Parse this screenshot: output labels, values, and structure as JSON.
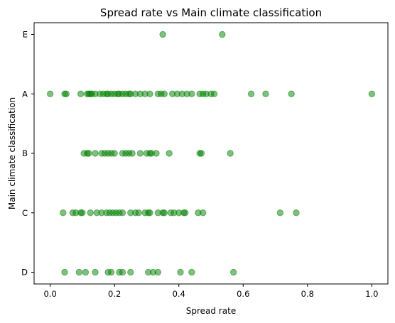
{
  "chart_data": {
    "type": "scatter",
    "title": "Spread rate vs Main climate classification",
    "xlabel": "Spread rate",
    "ylabel": "Main climate classification",
    "xlim": [
      -0.05,
      1.05
    ],
    "xticks": [
      0.0,
      0.2,
      0.4,
      0.6,
      0.8,
      1.0
    ],
    "xtick_labels": [
      "0.0",
      "0.2",
      "0.4",
      "0.6",
      "0.8",
      "1.0"
    ],
    "categories": [
      "D",
      "C",
      "B",
      "A",
      "E"
    ],
    "grid": false,
    "marker_color": "#008000",
    "marker_opacity": 0.5,
    "series": [
      {
        "points": [
          {
            "x": 0.35,
            "y": "E"
          },
          {
            "x": 0.535,
            "y": "E"
          },
          {
            "x": 0.0,
            "y": "A"
          },
          {
            "x": 0.045,
            "y": "A"
          },
          {
            "x": 0.05,
            "y": "A"
          },
          {
            "x": 0.095,
            "y": "A"
          },
          {
            "x": 0.115,
            "y": "A"
          },
          {
            "x": 0.12,
            "y": "A"
          },
          {
            "x": 0.125,
            "y": "A"
          },
          {
            "x": 0.13,
            "y": "A"
          },
          {
            "x": 0.14,
            "y": "A"
          },
          {
            "x": 0.155,
            "y": "A"
          },
          {
            "x": 0.165,
            "y": "A"
          },
          {
            "x": 0.175,
            "y": "A"
          },
          {
            "x": 0.18,
            "y": "A"
          },
          {
            "x": 0.19,
            "y": "A"
          },
          {
            "x": 0.2,
            "y": "A"
          },
          {
            "x": 0.21,
            "y": "A"
          },
          {
            "x": 0.215,
            "y": "A"
          },
          {
            "x": 0.225,
            "y": "A"
          },
          {
            "x": 0.235,
            "y": "A"
          },
          {
            "x": 0.245,
            "y": "A"
          },
          {
            "x": 0.25,
            "y": "A"
          },
          {
            "x": 0.265,
            "y": "A"
          },
          {
            "x": 0.28,
            "y": "A"
          },
          {
            "x": 0.295,
            "y": "A"
          },
          {
            "x": 0.31,
            "y": "A"
          },
          {
            "x": 0.335,
            "y": "A"
          },
          {
            "x": 0.345,
            "y": "A"
          },
          {
            "x": 0.355,
            "y": "A"
          },
          {
            "x": 0.38,
            "y": "A"
          },
          {
            "x": 0.395,
            "y": "A"
          },
          {
            "x": 0.41,
            "y": "A"
          },
          {
            "x": 0.425,
            "y": "A"
          },
          {
            "x": 0.44,
            "y": "A"
          },
          {
            "x": 0.465,
            "y": "A"
          },
          {
            "x": 0.475,
            "y": "A"
          },
          {
            "x": 0.485,
            "y": "A"
          },
          {
            "x": 0.5,
            "y": "A"
          },
          {
            "x": 0.51,
            "y": "A"
          },
          {
            "x": 0.625,
            "y": "A"
          },
          {
            "x": 0.67,
            "y": "A"
          },
          {
            "x": 0.75,
            "y": "A"
          },
          {
            "x": 1.0,
            "y": "A"
          },
          {
            "x": 0.105,
            "y": "B"
          },
          {
            "x": 0.115,
            "y": "B"
          },
          {
            "x": 0.12,
            "y": "B"
          },
          {
            "x": 0.14,
            "y": "B"
          },
          {
            "x": 0.16,
            "y": "B"
          },
          {
            "x": 0.17,
            "y": "B"
          },
          {
            "x": 0.18,
            "y": "B"
          },
          {
            "x": 0.19,
            "y": "B"
          },
          {
            "x": 0.2,
            "y": "B"
          },
          {
            "x": 0.225,
            "y": "B"
          },
          {
            "x": 0.235,
            "y": "B"
          },
          {
            "x": 0.245,
            "y": "B"
          },
          {
            "x": 0.255,
            "y": "B"
          },
          {
            "x": 0.28,
            "y": "B"
          },
          {
            "x": 0.3,
            "y": "B"
          },
          {
            "x": 0.31,
            "y": "B"
          },
          {
            "x": 0.315,
            "y": "B"
          },
          {
            "x": 0.33,
            "y": "B"
          },
          {
            "x": 0.37,
            "y": "B"
          },
          {
            "x": 0.465,
            "y": "B"
          },
          {
            "x": 0.47,
            "y": "B"
          },
          {
            "x": 0.56,
            "y": "B"
          },
          {
            "x": 0.04,
            "y": "C"
          },
          {
            "x": 0.07,
            "y": "C"
          },
          {
            "x": 0.08,
            "y": "C"
          },
          {
            "x": 0.095,
            "y": "C"
          },
          {
            "x": 0.1,
            "y": "C"
          },
          {
            "x": 0.125,
            "y": "C"
          },
          {
            "x": 0.145,
            "y": "C"
          },
          {
            "x": 0.16,
            "y": "C"
          },
          {
            "x": 0.175,
            "y": "C"
          },
          {
            "x": 0.185,
            "y": "C"
          },
          {
            "x": 0.195,
            "y": "C"
          },
          {
            "x": 0.205,
            "y": "C"
          },
          {
            "x": 0.215,
            "y": "C"
          },
          {
            "x": 0.225,
            "y": "C"
          },
          {
            "x": 0.25,
            "y": "C"
          },
          {
            "x": 0.265,
            "y": "C"
          },
          {
            "x": 0.275,
            "y": "C"
          },
          {
            "x": 0.295,
            "y": "C"
          },
          {
            "x": 0.305,
            "y": "C"
          },
          {
            "x": 0.31,
            "y": "C"
          },
          {
            "x": 0.335,
            "y": "C"
          },
          {
            "x": 0.35,
            "y": "C"
          },
          {
            "x": 0.355,
            "y": "C"
          },
          {
            "x": 0.375,
            "y": "C"
          },
          {
            "x": 0.385,
            "y": "C"
          },
          {
            "x": 0.4,
            "y": "C"
          },
          {
            "x": 0.415,
            "y": "C"
          },
          {
            "x": 0.42,
            "y": "C"
          },
          {
            "x": 0.46,
            "y": "C"
          },
          {
            "x": 0.475,
            "y": "C"
          },
          {
            "x": 0.715,
            "y": "C"
          },
          {
            "x": 0.765,
            "y": "C"
          },
          {
            "x": 0.045,
            "y": "D"
          },
          {
            "x": 0.09,
            "y": "D"
          },
          {
            "x": 0.11,
            "y": "D"
          },
          {
            "x": 0.14,
            "y": "D"
          },
          {
            "x": 0.18,
            "y": "D"
          },
          {
            "x": 0.19,
            "y": "D"
          },
          {
            "x": 0.215,
            "y": "D"
          },
          {
            "x": 0.225,
            "y": "D"
          },
          {
            "x": 0.25,
            "y": "D"
          },
          {
            "x": 0.305,
            "y": "D"
          },
          {
            "x": 0.32,
            "y": "D"
          },
          {
            "x": 0.335,
            "y": "D"
          },
          {
            "x": 0.405,
            "y": "D"
          },
          {
            "x": 0.44,
            "y": "D"
          },
          {
            "x": 0.57,
            "y": "D"
          }
        ]
      }
    ]
  }
}
